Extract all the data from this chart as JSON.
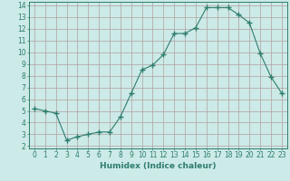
{
  "x": [
    0,
    1,
    2,
    3,
    4,
    5,
    6,
    7,
    8,
    9,
    10,
    11,
    12,
    13,
    14,
    15,
    16,
    17,
    18,
    19,
    20,
    21,
    22,
    23
  ],
  "y": [
    5.2,
    5.0,
    4.8,
    2.5,
    2.8,
    3.0,
    3.2,
    3.2,
    4.5,
    6.5,
    8.5,
    8.9,
    9.8,
    11.6,
    11.6,
    12.1,
    13.8,
    13.8,
    13.8,
    13.2,
    12.5,
    9.9,
    7.9,
    6.5
  ],
  "xlabel": "Humidex (Indice chaleur)",
  "ylabel": "",
  "xlim": [
    -0.5,
    23.5
  ],
  "ylim": [
    1.8,
    14.3
  ],
  "yticks": [
    2,
    3,
    4,
    5,
    6,
    7,
    8,
    9,
    10,
    11,
    12,
    13,
    14
  ],
  "xticks": [
    0,
    1,
    2,
    3,
    4,
    5,
    6,
    7,
    8,
    9,
    10,
    11,
    12,
    13,
    14,
    15,
    16,
    17,
    18,
    19,
    20,
    21,
    22,
    23
  ],
  "line_color": "#2e7d6e",
  "marker": "+",
  "marker_size": 4,
  "bg_color": "#cceae7",
  "grid_color": "#b0a0a0",
  "xlabel_fontsize": 6.5,
  "tick_fontsize": 5.5
}
